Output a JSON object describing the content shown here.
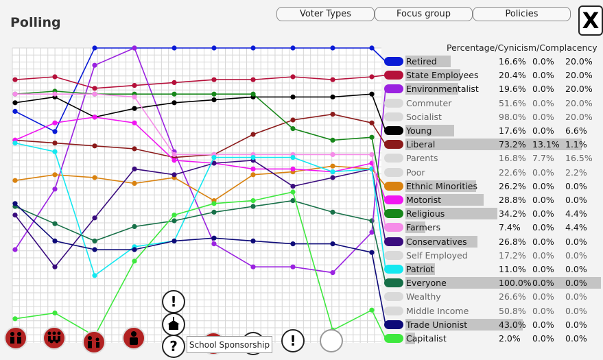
{
  "window": {
    "title": "Polling",
    "close_label": "X"
  },
  "tabs": [
    {
      "label": "Voter Types"
    },
    {
      "label": "Focus group"
    },
    {
      "label": "Policies"
    }
  ],
  "legend": {
    "header": "Percentage/Cynicism/Complacency"
  },
  "groups": [
    {
      "name": "Retired",
      "color": "#0a1bd6",
      "active": true,
      "pct": "16.6%",
      "cyn": "0.0%",
      "comp": "20.0%",
      "bar": 0.23,
      "series": [
        78,
        71,
        100,
        100,
        100,
        100,
        100,
        100,
        100,
        100
      ]
    },
    {
      "name": "State Employees",
      "color": "#b5103a",
      "active": true,
      "pct": "20.4%",
      "cyn": "0.0%",
      "comp": "20.0%",
      "bar": 0.28,
      "series": [
        89,
        90,
        86,
        87,
        88,
        89,
        89,
        90,
        89,
        90
      ]
    },
    {
      "name": "Environmentalist",
      "color": "#9a22e0",
      "active": true,
      "pct": "19.6%",
      "cyn": "0.0%",
      "comp": "20.0%",
      "bar": 0.27,
      "series": [
        30,
        51,
        94,
        100,
        64,
        32,
        24,
        24,
        22,
        36
      ]
    },
    {
      "name": "Commuter",
      "color": "#d9d9d9",
      "active": false,
      "pct": "51.6%",
      "cyn": "0.0%",
      "comp": "20.0%",
      "bar": 0.0,
      "series": []
    },
    {
      "name": "Socialist",
      "color": "#d9d9d9",
      "active": false,
      "pct": "98.0%",
      "cyn": "0.0%",
      "comp": "20.0%",
      "bar": 0.0,
      "series": []
    },
    {
      "name": "Young",
      "color": "#000000",
      "active": true,
      "pct": "17.6%",
      "cyn": "0.0%",
      "comp": "6.6%",
      "bar": 0.25,
      "series": [
        81,
        83,
        76,
        79,
        81,
        82,
        83,
        83,
        83,
        84
      ]
    },
    {
      "name": "Liberal",
      "color": "#8b1a1a",
      "active": true,
      "pct": "73.2%",
      "cyn": "13.1%",
      "comp": "1.1%",
      "bar": 0.9,
      "series": [
        68,
        67,
        66,
        65,
        62,
        63,
        70,
        75,
        77,
        74
      ]
    },
    {
      "name": "Parents",
      "color": "#d9d9d9",
      "active": false,
      "pct": "16.8%",
      "cyn": "7.7%",
      "comp": "16.5%",
      "bar": 0.0,
      "series": []
    },
    {
      "name": "Poor",
      "color": "#d9d9d9",
      "active": false,
      "pct": "22.6%",
      "cyn": "0.0%",
      "comp": "2.2%",
      "bar": 0.0,
      "series": []
    },
    {
      "name": "Ethnic Minorities",
      "color": "#d9820f",
      "active": true,
      "pct": "26.2%",
      "cyn": "0.0%",
      "comp": "0.0%",
      "bar": 0.36,
      "series": [
        54,
        56,
        55,
        53,
        55,
        47,
        56,
        57,
        59,
        58
      ]
    },
    {
      "name": "Motorist",
      "color": "#f016f0",
      "active": true,
      "pct": "28.8%",
      "cyn": "0.0%",
      "comp": "0.0%",
      "bar": 0.4,
      "series": [
        68,
        74,
        76,
        74,
        61,
        60,
        58,
        58,
        57,
        60
      ]
    },
    {
      "name": "Religious",
      "color": "#17871a",
      "active": true,
      "pct": "34.2%",
      "cyn": "0.0%",
      "comp": "4.4%",
      "bar": 0.47,
      "series": [
        84,
        85,
        84,
        84,
        84,
        84,
        84,
        72,
        68,
        69
      ]
    },
    {
      "name": "Farmers",
      "color": "#f58ce8",
      "active": true,
      "pct": "7.4%",
      "cyn": "0.0%",
      "comp": "4.4%",
      "bar": 0.1,
      "series": [
        84,
        84,
        84,
        83,
        63,
        63,
        63,
        63,
        63,
        63
      ]
    },
    {
      "name": "Conservatives",
      "color": "#3a0c7e",
      "active": true,
      "pct": "26.8%",
      "cyn": "0.0%",
      "comp": "0.0%",
      "bar": 0.37,
      "series": [
        42,
        24,
        41,
        58,
        56,
        60,
        61,
        52,
        55,
        58
      ]
    },
    {
      "name": "Self Employed",
      "color": "#d9d9d9",
      "active": false,
      "pct": "17.2%",
      "cyn": "0.0%",
      "comp": "0.0%",
      "bar": 0.0,
      "series": []
    },
    {
      "name": "Patriot",
      "color": "#14e8f0",
      "active": true,
      "pct": "11.0%",
      "cyn": "0.0%",
      "comp": "0.0%",
      "bar": 0.15,
      "series": [
        67,
        64,
        21,
        31,
        33,
        62,
        62,
        62,
        57,
        58
      ]
    },
    {
      "name": "Everyone",
      "color": "#177048",
      "active": true,
      "pct": "100.0%",
      "cyn": "0.0%",
      "comp": "0.0%",
      "bar": 1.0,
      "series": [
        45,
        39,
        33,
        38,
        40,
        43,
        45,
        47,
        43,
        40
      ]
    },
    {
      "name": "Wealthy",
      "color": "#d9d9d9",
      "active": false,
      "pct": "26.6%",
      "cyn": "0.0%",
      "comp": "0.0%",
      "bar": 0.0,
      "series": []
    },
    {
      "name": "Middle Income",
      "color": "#d9d9d9",
      "active": false,
      "pct": "50.8%",
      "cyn": "0.0%",
      "comp": "0.0%",
      "bar": 0.0,
      "series": []
    },
    {
      "name": "Trade Unionist",
      "color": "#0d0a78",
      "active": true,
      "pct": "43.0%",
      "cyn": "0.0%",
      "comp": "0.0%",
      "bar": 0.6,
      "series": [
        46,
        33,
        30,
        30,
        33,
        34,
        33,
        32,
        32,
        29
      ]
    },
    {
      "name": "Capitalist",
      "color": "#3ee83e",
      "active": true,
      "pct": "2.0%",
      "cyn": "0.0%",
      "comp": "0.0%",
      "bar": 0.05,
      "series": [
        6,
        8,
        0,
        26,
        42,
        46,
        47,
        50,
        2,
        9
      ]
    }
  ],
  "tooltip": {
    "text": "School Sponsorship"
  },
  "bottom_icons": [
    {
      "name": "group-small-icon"
    },
    {
      "name": "group-large-icon"
    },
    {
      "name": "group-family-icon"
    },
    {
      "name": "person-icon"
    },
    {
      "name": "question-icon"
    },
    {
      "name": "exclamation-icon"
    },
    {
      "name": "blank-icon"
    }
  ]
}
